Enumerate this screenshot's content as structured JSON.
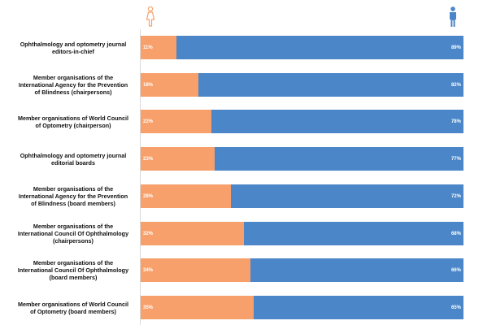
{
  "icons": {
    "female": {
      "name": "female-icon",
      "color": "#f7a06b"
    },
    "male": {
      "name": "male-icon",
      "color": "#4a86c8"
    }
  },
  "chart_data": {
    "type": "bar",
    "stacked": true,
    "orientation": "horizontal",
    "categories": [
      "Ophthalmology and optometry journal\neditors-in-chief",
      "Member organisations of the\nInternational Agency for the Prevention\nof Blindness (chairpersons)",
      "Member organisations of World Council\nof Optometry (chairperson)",
      "Ophthalmology and optometry journal\neditorial boards",
      "Member organisations of the\nInternational Agency for the Prevention\nof Blindness (board members)",
      "Member organisations of the\nInternational Council Of Ophthalmology\n(chairpersons)",
      "Member organisations of the\nInternational Council Of Ophthalmology\n(board members)",
      "Member organisations of World Council\nof Optometry (board members)"
    ],
    "series": [
      {
        "values": [
          11,
          18,
          22,
          23,
          28,
          32,
          34,
          35
        ],
        "labels": [
          "11%",
          "18%",
          "22%",
          "23%",
          "28%",
          "32%",
          "34%",
          "35%"
        ],
        "color": "#f7a06b"
      },
      {
        "values": [
          89,
          82,
          78,
          77,
          72,
          68,
          66,
          65
        ],
        "labels": [
          "89%",
          "82%",
          "78%",
          "77%",
          "72%",
          "68%",
          "66%",
          "65%"
        ],
        "color": "#4a86c8"
      }
    ],
    "xlim": [
      0,
      100
    ],
    "grid": false,
    "legend": "icons above bar ends"
  }
}
